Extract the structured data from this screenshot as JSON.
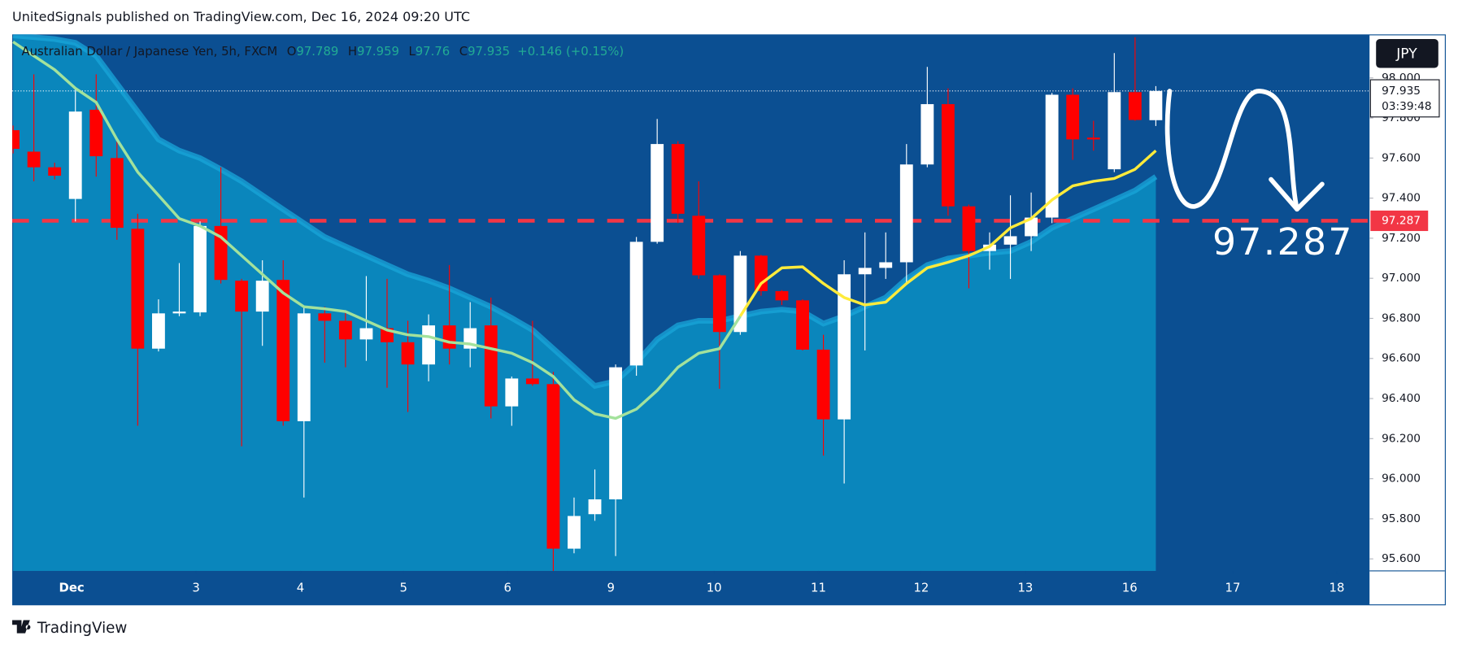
{
  "header": {
    "text": "UnitedSignals published on TradingView.com, Dec 16, 2024 09:20 UTC"
  },
  "chart_data": {
    "type": "candlestick",
    "symbol": "Australian Dollar / Japanese Yen, 5h, FXCM",
    "legend": [
      {
        "label": "O",
        "value": 97.789
      },
      {
        "label": "H",
        "value": 97.959
      },
      {
        "label": "L",
        "value": 97.76
      },
      {
        "label": "C",
        "value": 97.935
      }
    ],
    "change": "+0.146 (+0.15%)",
    "currency_button": "JPY",
    "x": [
      0,
      1,
      2,
      3,
      4,
      5,
      6,
      7,
      8,
      9,
      10,
      11,
      12,
      13,
      14,
      15,
      16,
      17,
      18,
      19,
      20,
      21,
      22,
      23,
      24,
      25,
      26,
      27,
      28,
      29,
      30,
      31,
      32,
      33,
      34,
      35,
      36,
      37,
      38,
      39,
      40,
      41,
      42,
      43,
      44,
      45,
      46,
      47,
      48,
      49,
      50,
      51,
      52,
      53,
      54,
      55
    ],
    "open": [
      97.739,
      97.632,
      97.554,
      97.396,
      97.841,
      97.6,
      97.247,
      96.649,
      96.825,
      96.83,
      97.261,
      96.988,
      96.834,
      96.992,
      96.287,
      96.825,
      96.788,
      96.695,
      96.751,
      96.681,
      96.57,
      96.765,
      96.649,
      96.765,
      96.361,
      96.5,
      96.472,
      95.651,
      95.823,
      95.897,
      96.565,
      97.182,
      97.67,
      97.312,
      97.015,
      96.732,
      97.113,
      96.936,
      96.89,
      96.644,
      96.296,
      97.02,
      97.052,
      97.08,
      97.568,
      97.869,
      97.359,
      97.136,
      97.168,
      97.21,
      97.303,
      97.916,
      97.702,
      97.544,
      97.929,
      97.789
    ],
    "high": [
      97.762,
      98.018,
      97.577,
      97.948,
      98.018,
      97.693,
      97.322,
      96.895,
      97.076,
      97.284,
      97.554,
      96.997,
      97.09,
      97.09,
      96.858,
      96.858,
      96.834,
      97.011,
      96.997,
      96.788,
      96.82,
      97.066,
      96.881,
      96.904,
      96.51,
      96.788,
      96.533,
      95.906,
      96.046,
      96.57,
      97.206,
      97.795,
      97.684,
      97.484,
      97.02,
      97.136,
      97.117,
      96.941,
      96.895,
      96.718,
      97.09,
      97.229,
      97.229,
      97.67,
      98.055,
      97.948,
      97.368,
      97.229,
      97.414,
      97.428,
      97.925,
      97.948,
      97.786,
      98.124,
      98.203,
      97.959
    ],
    "low": [
      97.623,
      97.484,
      97.493,
      97.284,
      97.507,
      97.192,
      96.264,
      96.635,
      96.811,
      96.811,
      96.974,
      96.162,
      96.663,
      96.264,
      95.906,
      96.579,
      96.556,
      96.588,
      96.454,
      96.333,
      96.486,
      96.57,
      96.556,
      96.301,
      96.264,
      96.463,
      95.535,
      95.628,
      95.79,
      95.614,
      96.514,
      97.173,
      97.275,
      96.997,
      96.449,
      96.718,
      96.913,
      96.867,
      96.64,
      96.115,
      95.976,
      96.64,
      96.997,
      96.974,
      97.554,
      97.312,
      96.95,
      97.043,
      96.997,
      97.136,
      97.275,
      97.591,
      97.637,
      97.53,
      97.786,
      97.76
    ],
    "close": [
      97.646,
      97.554,
      97.512,
      97.832,
      97.609,
      97.252,
      96.649,
      96.825,
      96.834,
      97.261,
      96.992,
      96.834,
      96.988,
      96.287,
      96.825,
      96.788,
      96.695,
      96.751,
      96.681,
      96.57,
      96.765,
      96.649,
      96.751,
      96.361,
      96.5,
      96.472,
      95.651,
      95.814,
      95.897,
      96.556,
      97.182,
      97.67,
      97.322,
      97.015,
      96.732,
      97.113,
      96.936,
      96.89,
      96.644,
      96.296,
      97.02,
      97.052,
      97.08,
      97.568,
      97.869,
      97.359,
      97.136,
      97.168,
      97.21,
      97.303,
      97.916,
      97.693,
      97.693,
      97.929,
      97.79,
      97.935
    ],
    "colors": {
      "up": "#ffffff",
      "down": "#ff0000"
    },
    "band": {
      "color": "#0a86bc",
      "line_color": "#1aa6da",
      "values": [
        98.212,
        98.203,
        98.194,
        98.175,
        98.11,
        97.971,
        97.832,
        97.693,
        97.637,
        97.6,
        97.544,
        97.484,
        97.414,
        97.344,
        97.275,
        97.206,
        97.159,
        97.113,
        97.066,
        97.02,
        96.988,
        96.95,
        96.904,
        96.858,
        96.802,
        96.742,
        96.649,
        96.556,
        96.463,
        96.486,
        96.579,
        96.695,
        96.765,
        96.788,
        96.788,
        96.811,
        96.834,
        96.844,
        96.834,
        96.774,
        96.811,
        96.858,
        96.904,
        96.997,
        97.066,
        97.099,
        97.113,
        97.127,
        97.136,
        97.182,
        97.252,
        97.298,
        97.344,
        97.391,
        97.438,
        97.507
      ]
    },
    "lines": [
      {
        "color": "#a3e29c",
        "values": [
          98.18,
          98.11,
          98.041,
          97.948,
          97.878,
          97.693,
          97.53,
          97.414,
          97.298,
          97.261,
          97.206,
          97.113,
          97.02,
          96.927,
          96.858,
          96.848,
          96.834,
          96.788,
          96.742,
          96.718,
          96.709,
          96.681,
          96.672,
          96.649,
          96.626,
          96.579,
          96.51,
          96.394,
          96.324,
          96.301,
          96.347,
          96.44,
          96.556,
          96.626,
          96.649,
          96.811,
          null,
          null,
          null,
          null,
          null,
          null,
          null,
          null,
          null,
          null,
          null,
          null,
          null,
          null,
          null,
          null,
          null,
          null,
          null,
          null
        ]
      },
      {
        "color": "#ffeb3b",
        "values": [
          null,
          null,
          null,
          null,
          null,
          null,
          null,
          null,
          null,
          null,
          null,
          null,
          null,
          null,
          null,
          null,
          null,
          null,
          null,
          null,
          null,
          null,
          null,
          null,
          null,
          null,
          null,
          null,
          null,
          null,
          null,
          null,
          null,
          null,
          null,
          96.811,
          96.974,
          97.052,
          97.057,
          96.974,
          96.904,
          96.867,
          96.881,
          96.974,
          97.052,
          97.08,
          97.113,
          97.159,
          97.252,
          97.298,
          97.391,
          97.461,
          97.484,
          97.498,
          97.544,
          97.637
        ]
      }
    ],
    "hline": {
      "value": 97.287,
      "label": "97.287",
      "color": "#f23645"
    },
    "last_price": {
      "value": 97.935,
      "label": "97.935",
      "countdown": "03:39:48"
    },
    "xlim": [
      -0.04,
      65.24
    ],
    "xticks": [
      {
        "value": 2.82,
        "label": "Dec"
      },
      {
        "value": 8.81,
        "label": "3"
      },
      {
        "value": 13.83,
        "label": "4"
      },
      {
        "value": 18.79,
        "label": "5"
      },
      {
        "value": 23.8,
        "label": "6"
      },
      {
        "value": 28.77,
        "label": "9"
      },
      {
        "value": 33.74,
        "label": "10"
      },
      {
        "value": 38.76,
        "label": "11"
      },
      {
        "value": 43.71,
        "label": "12"
      },
      {
        "value": 48.72,
        "label": "13"
      },
      {
        "value": 53.74,
        "label": "16"
      },
      {
        "value": 58.7,
        "label": "17"
      },
      {
        "value": 63.71,
        "label": "18"
      }
    ],
    "ylim": [
      95.54,
      98.217
    ],
    "yticks": [
      {
        "value": 95.6,
        "label": "95.600"
      },
      {
        "value": 95.8,
        "label": "95.800"
      },
      {
        "value": 96.0,
        "label": "96.000"
      },
      {
        "value": 96.2,
        "label": "96.200"
      },
      {
        "value": 96.4,
        "label": "96.400"
      },
      {
        "value": 96.6,
        "label": "96.600"
      },
      {
        "value": 96.8,
        "label": "96.800"
      },
      {
        "value": 97.0,
        "label": "97.000"
      },
      {
        "value": 97.2,
        "label": "97.200"
      },
      {
        "value": 97.4,
        "label": "97.400"
      },
      {
        "value": 97.6,
        "label": "97.600"
      },
      {
        "value": 97.8,
        "label": "97.800"
      },
      {
        "value": 98.0,
        "label": "98.000"
      }
    ]
  },
  "footer": {
    "brand": "TradingView"
  }
}
